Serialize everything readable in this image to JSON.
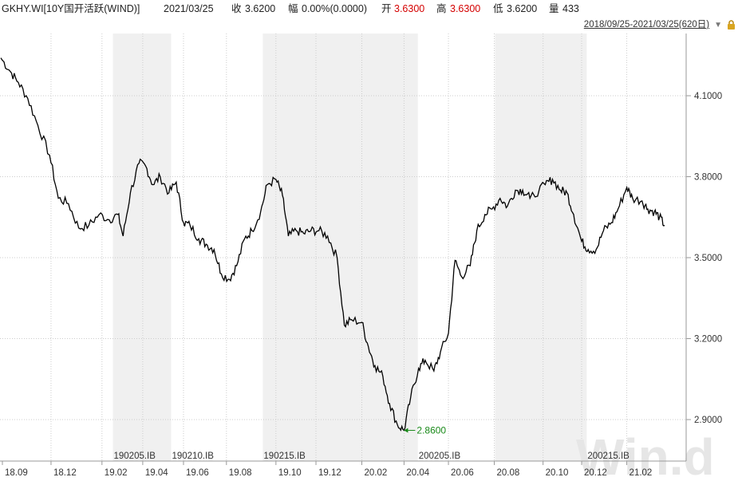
{
  "header": {
    "code": "GKHY.WI[10Y国开活跃(WIND)]",
    "date": "2021/03/25",
    "close_label": "收",
    "close": "3.6200",
    "change_label": "幅",
    "change": "0.00%(0.0000)",
    "open_label": "开",
    "open": "3.6300",
    "high_label": "高",
    "high": "3.6300",
    "low_label": "低",
    "low": "3.6200",
    "volume_label": "量",
    "volume": "433",
    "range": "2018/09/25-2021/03/25(620日)",
    "colors": {
      "up": "#d40000",
      "text": "#222222"
    }
  },
  "watermark": "Win.d",
  "chart_data": {
    "type": "line",
    "ylim": [
      2.86,
      4.26
    ],
    "y_ticks": [
      "4.1000",
      "3.8000",
      "3.5000",
      "3.2000",
      "2.9000"
    ],
    "x_ticks": [
      "18.09",
      "18.12",
      "19.02",
      "19.04",
      "19.06",
      "19.08",
      "19.10",
      "19.12",
      "20.02",
      "20.04",
      "20.06",
      "20.08",
      "20.10",
      "20.12",
      "21.02"
    ],
    "x": [
      "2018-09-25",
      "2018-10-08",
      "2018-10-19",
      "2018-11-01",
      "2018-11-15",
      "2018-12-01",
      "2018-12-13",
      "2018-12-27",
      "2019-01-10",
      "2019-01-24",
      "2019-02-07",
      "2019-02-21",
      "2019-03-05",
      "2019-03-12",
      "2019-03-22",
      "2019-04-03",
      "2019-04-12",
      "2019-04-22",
      "2019-05-02",
      "2019-05-14",
      "2019-05-24",
      "2019-06-03",
      "2019-06-12",
      "2019-06-24",
      "2019-07-04",
      "2019-07-15",
      "2019-07-25",
      "2019-08-05",
      "2019-08-15",
      "2019-08-26",
      "2019-09-05",
      "2019-09-17",
      "2019-09-26",
      "2019-10-08",
      "2019-10-17",
      "2019-10-25",
      "2019-11-05",
      "2019-11-15",
      "2019-11-25",
      "2019-12-06",
      "2019-12-18",
      "2019-12-31",
      "2020-01-10",
      "2020-01-20",
      "2020-02-03",
      "2020-02-12",
      "2020-02-21",
      "2020-03-03",
      "2020-03-12",
      "2020-03-23",
      "2020-04-01",
      "2020-04-10",
      "2020-04-21",
      "2020-04-30",
      "2020-05-12",
      "2020-05-21",
      "2020-06-01",
      "2020-06-10",
      "2020-06-19",
      "2020-07-01",
      "2020-07-10",
      "2020-07-21",
      "2020-07-31",
      "2020-08-11",
      "2020-08-21",
      "2020-09-01",
      "2020-09-11",
      "2020-09-21",
      "2020-10-12",
      "2020-10-22",
      "2020-11-02",
      "2020-11-11",
      "2020-11-20",
      "2020-12-01",
      "2020-12-10",
      "2020-12-21",
      "2020-12-31",
      "2021-01-11",
      "2021-01-20",
      "2021-02-01",
      "2021-02-09",
      "2021-02-22",
      "2021-03-02",
      "2021-03-11",
      "2021-03-18",
      "2021-03-25"
    ],
    "values": [
      4.24,
      4.19,
      4.15,
      4.09,
      3.99,
      3.88,
      3.72,
      3.7,
      3.61,
      3.62,
      3.66,
      3.64,
      3.66,
      3.58,
      3.74,
      3.85,
      3.84,
      3.77,
      3.8,
      3.74,
      3.78,
      3.63,
      3.62,
      3.57,
      3.55,
      3.53,
      3.44,
      3.42,
      3.47,
      3.57,
      3.6,
      3.67,
      3.77,
      3.79,
      3.73,
      3.58,
      3.6,
      3.59,
      3.6,
      3.6,
      3.58,
      3.5,
      3.25,
      3.27,
      3.26,
      3.17,
      3.1,
      3.06,
      2.96,
      2.88,
      2.86,
      2.98,
      3.09,
      3.12,
      3.08,
      3.15,
      3.22,
      3.49,
      3.43,
      3.47,
      3.6,
      3.66,
      3.68,
      3.72,
      3.69,
      3.75,
      3.75,
      3.72,
      3.77,
      3.79,
      3.75,
      3.74,
      3.66,
      3.56,
      3.53,
      3.53,
      3.6,
      3.63,
      3.68,
      3.76,
      3.72,
      3.71,
      3.68,
      3.67,
      3.65,
      3.62
    ],
    "low_annotation": {
      "x": "2020-04-01",
      "y": 2.86,
      "text": "2.8600"
    },
    "shaded_periods": [
      [
        "2019-02-26",
        "2019-05-17"
      ],
      [
        "2019-09-20",
        "2020-04-20"
      ],
      [
        "2020-08-04",
        "2020-12-08"
      ]
    ],
    "contracts": [
      {
        "label": "190205.IB",
        "x": "2019-02-26"
      },
      {
        "label": "190210.IB",
        "x": "2019-05-17"
      },
      {
        "label": "190215.IB",
        "x": "2019-09-20"
      },
      {
        "label": "200205.IB",
        "x": "2020-04-20"
      },
      {
        "label": "200215.IB",
        "x": "2020-12-08"
      }
    ],
    "grid": true,
    "colors": {
      "line": "#000000",
      "shade": "#f0f0f0",
      "grid": "#cccccc",
      "annotation": "#1a8a1a"
    }
  }
}
